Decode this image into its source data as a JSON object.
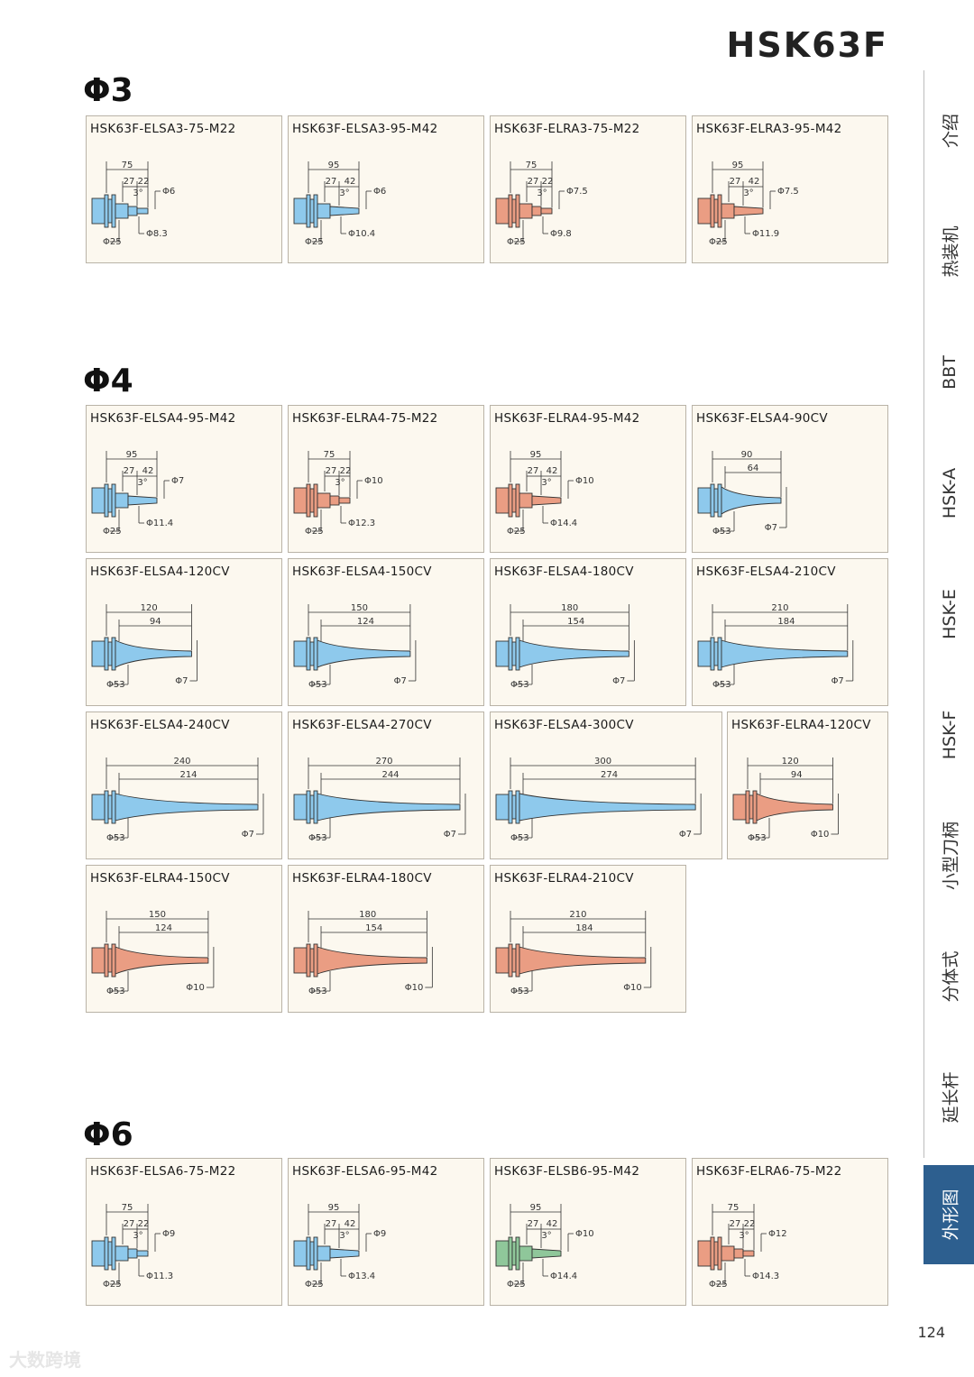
{
  "page_title": "HSK63F",
  "page_number": "124",
  "watermark": "大数跨境",
  "colors": {
    "blue": "#8ec9ec",
    "orange": "#ea9d83",
    "green": "#8fc79a",
    "active_tab": "#2d5f8f"
  },
  "sidebar": {
    "items": [
      {
        "label": "介绍",
        "active": false
      },
      {
        "label": "热装机",
        "active": false
      },
      {
        "label": "BBT",
        "active": false
      },
      {
        "label": "HSK-A",
        "active": false
      },
      {
        "label": "HSK-E",
        "active": false
      },
      {
        "label": "HSK-F",
        "active": false
      },
      {
        "label": "小型刀柄",
        "active": false
      },
      {
        "label": "分体式",
        "active": false
      },
      {
        "label": "延长杆",
        "active": false
      },
      {
        "label": "外形图",
        "active": true
      }
    ]
  },
  "sections": [
    {
      "title": "Φ3",
      "cards": [
        {
          "title": "HSK63F-ELSA3-75-M22",
          "type": "short",
          "color": "blue",
          "total": "75",
          "a": "27",
          "b": "22",
          "angle": "3°",
          "d_tip": "Φ6",
          "d_mid": "Φ8.3",
          "d_base": "Φ25"
        },
        {
          "title": "HSK63F-ELSA3-95-M42",
          "type": "short",
          "color": "blue",
          "total": "95",
          "a": "27",
          "b": "42",
          "angle": "3°",
          "d_tip": "Φ6",
          "d_mid": "Φ10.4",
          "d_base": "Φ25"
        },
        {
          "title": "HSK63F-ELRA3-75-M22",
          "type": "short",
          "color": "orange",
          "total": "75",
          "a": "27",
          "b": "22",
          "angle": "3°",
          "d_tip": "Φ7.5",
          "d_mid": "Φ9.8",
          "d_base": "Φ25"
        },
        {
          "title": "HSK63F-ELRA3-95-M42",
          "type": "short",
          "color": "orange",
          "total": "95",
          "a": "27",
          "b": "42",
          "angle": "3°",
          "d_tip": "Φ7.5",
          "d_mid": "Φ11.9",
          "d_base": "Φ25"
        }
      ]
    },
    {
      "title": "Φ4",
      "cards": [
        {
          "title": "HSK63F-ELSA4-95-M42",
          "type": "short",
          "color": "blue",
          "total": "95",
          "a": "27",
          "b": "42",
          "angle": "3°",
          "d_tip": "Φ7",
          "d_mid": "Φ11.4",
          "d_base": "Φ25"
        },
        {
          "title": "HSK63F-ELRA4-75-M22",
          "type": "short",
          "color": "orange",
          "total": "75",
          "a": "27",
          "b": "22",
          "angle": "3°",
          "d_tip": "Φ10",
          "d_mid": "Φ12.3",
          "d_base": "Φ25"
        },
        {
          "title": "HSK63F-ELRA4-95-M42",
          "type": "short",
          "color": "orange",
          "total": "95",
          "a": "27",
          "b": "42",
          "angle": "3°",
          "d_tip": "Φ10",
          "d_mid": "Φ14.4",
          "d_base": "Φ25"
        },
        {
          "title": "HSK63F-ELSA4-90CV",
          "type": "cone",
          "color": "blue",
          "total": "90",
          "inner": "64",
          "d_base": "Φ53",
          "d_tip": "Φ7"
        },
        {
          "title": "HSK63F-ELSA4-120CV",
          "type": "cone",
          "color": "blue",
          "total": "120",
          "inner": "94",
          "d_base": "Φ53",
          "d_tip": "Φ7"
        },
        {
          "title": "HSK63F-ELSA4-150CV",
          "type": "cone",
          "color": "blue",
          "total": "150",
          "inner": "124",
          "d_base": "Φ53",
          "d_tip": "Φ7"
        },
        {
          "title": "HSK63F-ELSA4-180CV",
          "type": "cone",
          "color": "blue",
          "total": "180",
          "inner": "154",
          "d_base": "Φ53",
          "d_tip": "Φ7"
        },
        {
          "title": "HSK63F-ELSA4-210CV",
          "type": "cone",
          "color": "blue",
          "total": "210",
          "inner": "184",
          "d_base": "Φ53",
          "d_tip": "Φ7"
        },
        {
          "title": "HSK63F-ELSA4-240CV",
          "type": "cone",
          "color": "blue",
          "total": "240",
          "inner": "214",
          "d_base": "Φ53",
          "d_tip": "Φ7"
        },
        {
          "title": "HSK63F-ELSA4-270CV",
          "type": "cone",
          "color": "blue",
          "total": "270",
          "inner": "244",
          "d_base": "Φ53",
          "d_tip": "Φ7"
        },
        {
          "title": "HSK63F-ELSA4-300CV",
          "type": "cone",
          "color": "blue",
          "total": "300",
          "inner": "274",
          "d_base": "Φ53",
          "d_tip": "Φ7"
        },
        {
          "title": "HSK63F-ELRA4-120CV",
          "type": "cone",
          "color": "orange",
          "total": "120",
          "inner": "94",
          "d_base": "Φ53",
          "d_tip": "Φ10"
        },
        {
          "title": "HSK63F-ELRA4-150CV",
          "type": "cone",
          "color": "orange",
          "total": "150",
          "inner": "124",
          "d_base": "Φ53",
          "d_tip": "Φ10"
        },
        {
          "title": "HSK63F-ELRA4-180CV",
          "type": "cone",
          "color": "orange",
          "total": "180",
          "inner": "154",
          "d_base": "Φ53",
          "d_tip": "Φ10"
        },
        {
          "title": "HSK63F-ELRA4-210CV",
          "type": "cone",
          "color": "orange",
          "total": "210",
          "inner": "184",
          "d_base": "Φ53",
          "d_tip": "Φ10"
        }
      ]
    },
    {
      "title": "Φ6",
      "cards": [
        {
          "title": "HSK63F-ELSA6-75-M22",
          "type": "short",
          "color": "blue",
          "total": "75",
          "a": "27",
          "b": "22",
          "angle": "3°",
          "d_tip": "Φ9",
          "d_mid": "Φ11.3",
          "d_base": "Φ25"
        },
        {
          "title": "HSK63F-ELSA6-95-M42",
          "type": "short",
          "color": "blue",
          "total": "95",
          "a": "27",
          "b": "42",
          "angle": "3°",
          "d_tip": "Φ9",
          "d_mid": "Φ13.4",
          "d_base": "Φ25"
        },
        {
          "title": "HSK63F-ELSB6-95-M42",
          "type": "short",
          "color": "green",
          "total": "95",
          "a": "27",
          "b": "42",
          "angle": "3°",
          "d_tip": "Φ10",
          "d_mid": "Φ14.4",
          "d_base": "Φ25"
        },
        {
          "title": "HSK63F-ELRA6-75-M22",
          "type": "short",
          "color": "orange",
          "total": "75",
          "a": "27",
          "b": "22",
          "angle": "3°",
          "d_tip": "Φ12",
          "d_mid": "Φ14.3",
          "d_base": "Φ25"
        }
      ]
    }
  ]
}
